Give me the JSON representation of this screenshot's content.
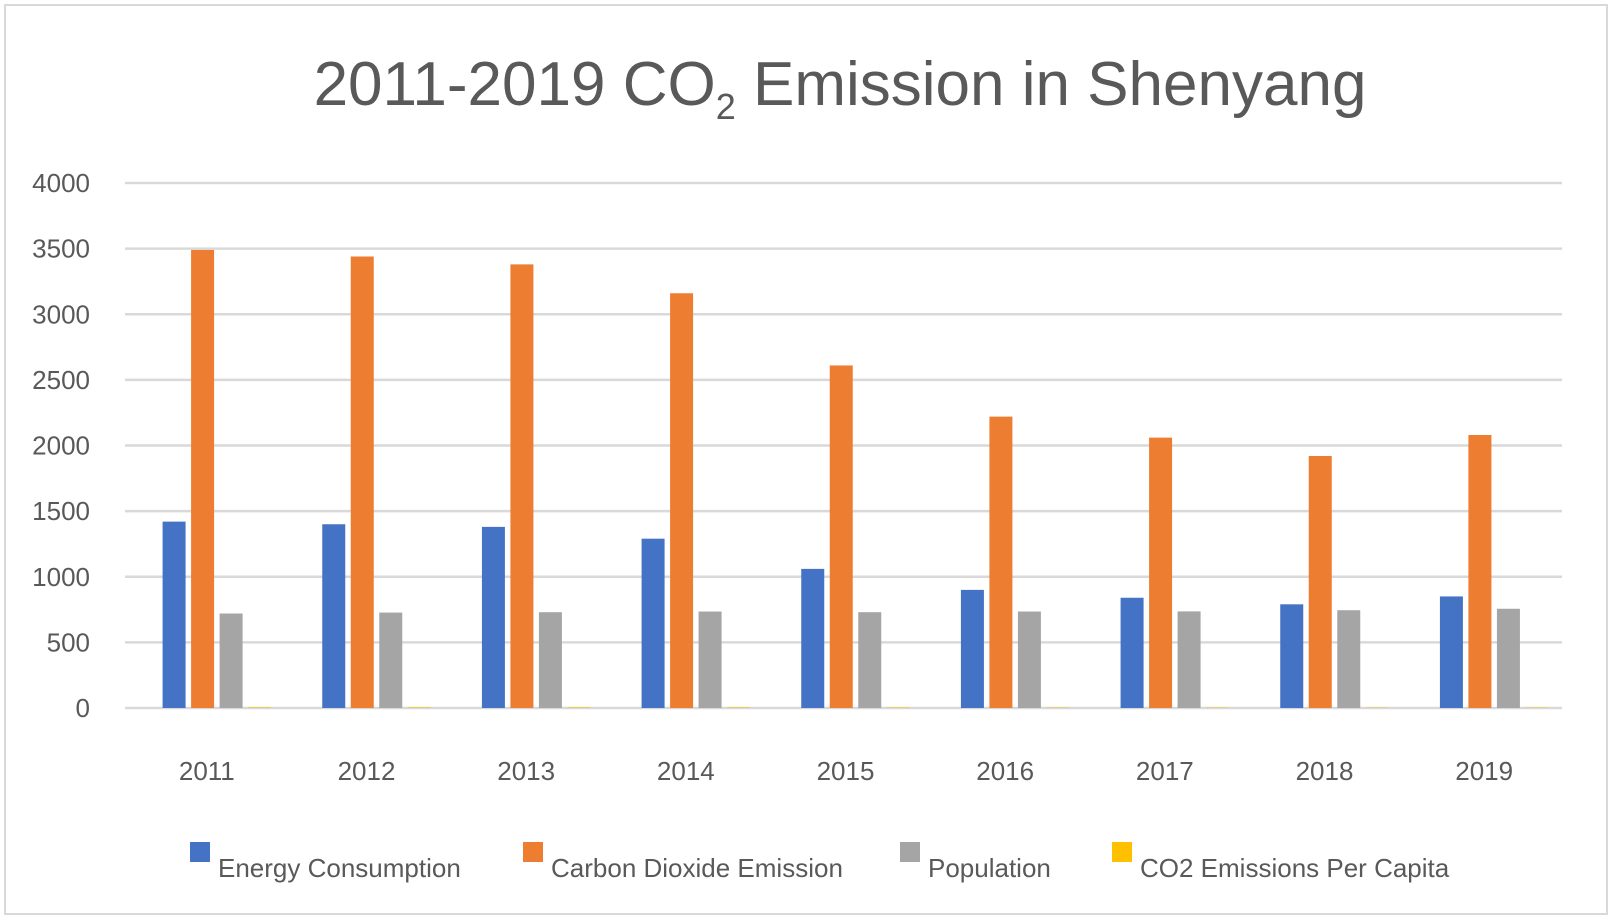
{
  "chart_data": {
    "type": "bar",
    "title": {
      "main": "2011-2019 CO",
      "subscript": "2",
      "rest": " Emission in Shenyang"
    },
    "categories": [
      "2011",
      "2012",
      "2013",
      "2014",
      "2015",
      "2016",
      "2017",
      "2018",
      "2019"
    ],
    "y_ticks": [
      "0",
      "500",
      "1000",
      "1500",
      "2000",
      "2500",
      "3000",
      "3500",
      "4000"
    ],
    "ylim": [
      0,
      4000
    ],
    "grid": true,
    "legend_position": "bottom",
    "series": [
      {
        "name": "Energy Consumption",
        "color": "#4472C4",
        "values": [
          1420,
          1400,
          1380,
          1290,
          1060,
          900,
          840,
          790,
          850
        ]
      },
      {
        "name": "Carbon Dioxide Emission",
        "color": "#ED7D31",
        "values": [
          3490,
          3440,
          3380,
          3160,
          2610,
          2220,
          2060,
          1920,
          2080
        ]
      },
      {
        "name": "Population",
        "color": "#A5A5A5",
        "values": [
          720,
          727,
          730,
          735,
          730,
          735,
          736,
          745,
          756
        ]
      },
      {
        "name": "CO2 Emissions Per Capita",
        "color": "#FFC000",
        "values": [
          4.8,
          4.7,
          4.6,
          4.3,
          3.6,
          3.0,
          2.8,
          2.6,
          2.8
        ]
      }
    ]
  }
}
